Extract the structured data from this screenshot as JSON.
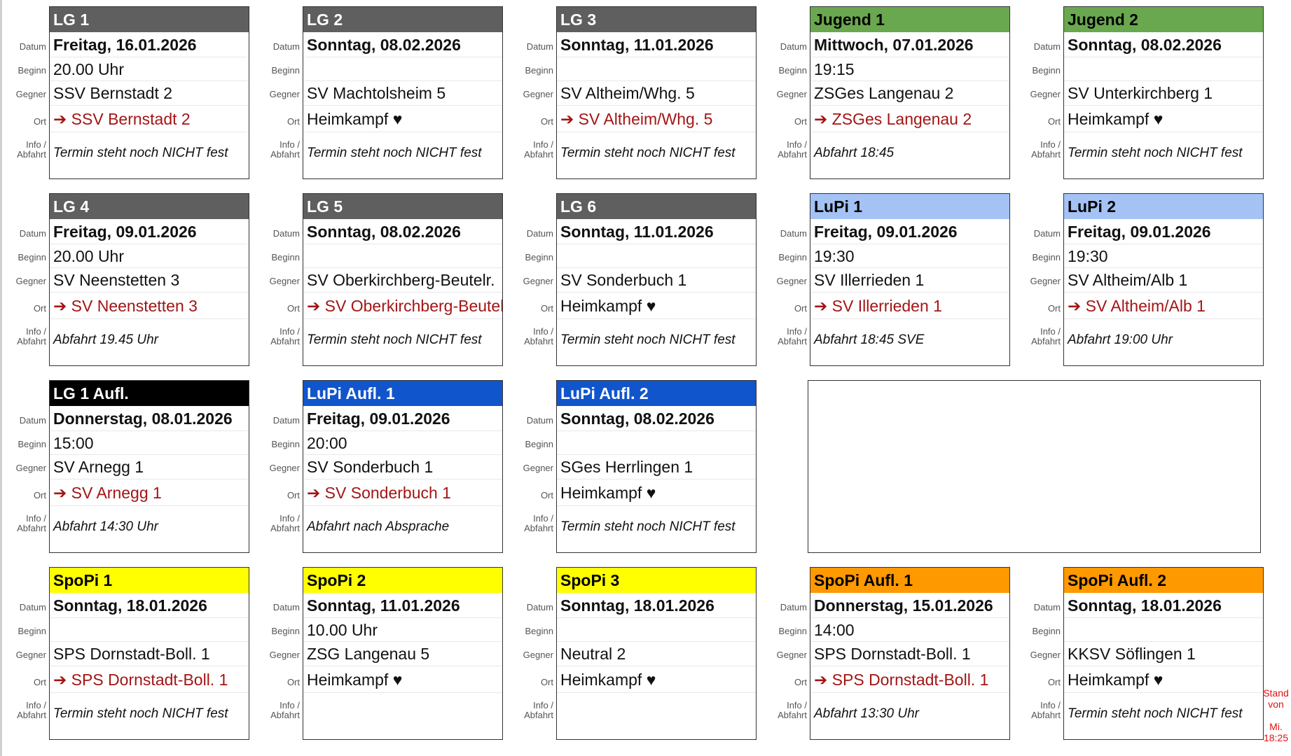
{
  "labels": {
    "datum": "Datum",
    "beginn": "Beginn",
    "gegner": "Gegner",
    "ort": "Ort",
    "info1": "Info /",
    "info2": "Abfahrt"
  },
  "colors": {
    "gray": "#5f5f5f",
    "green": "#6aa84f",
    "lightblue": "#a4c2f4",
    "black": "#000000",
    "blue": "#1155cc",
    "yellow": "#ffff00",
    "orange": "#ff9900",
    "away_text": "#a31515",
    "stand_text": "#e01010"
  },
  "teams": [
    {
      "name": "LG 1",
      "color": "gray",
      "datum": "Freitag, 16.01.2026",
      "beginn": "20.00 Uhr",
      "gegner": "SSV Bernstadt 2",
      "ort": "➔ SSV Bernstadt 2",
      "away": true,
      "info": "Termin steht noch NICHT fest",
      "col": 0,
      "row": 0
    },
    {
      "name": "LG 2",
      "color": "gray",
      "datum": "Sonntag, 08.02.2026",
      "beginn": "",
      "gegner": "SV Machtolsheim 5",
      "ort": "Heimkampf ♥",
      "away": false,
      "info": "Termin steht noch NICHT fest",
      "col": 1,
      "row": 0
    },
    {
      "name": "LG 3",
      "color": "gray",
      "datum": "Sonntag, 11.01.2026",
      "beginn": "",
      "gegner": "SV Altheim/Whg. 5",
      "ort": "➔ SV Altheim/Whg. 5",
      "away": true,
      "info": "Termin steht noch NICHT fest",
      "col": 2,
      "row": 0
    },
    {
      "name": "Jugend 1",
      "color": "green",
      "datum": "Mittwoch, 07.01.2026",
      "beginn": "19:15",
      "gegner": "ZSGes Langenau 2",
      "ort": "➔ ZSGes Langenau 2",
      "away": true,
      "info": "Abfahrt 18:45",
      "col": 3,
      "row": 0
    },
    {
      "name": "Jugend 2",
      "color": "green",
      "datum": "Sonntag, 08.02.2026",
      "beginn": "",
      "gegner": "SV Unterkirchberg 1",
      "ort": "Heimkampf ♥",
      "away": false,
      "info": "Termin steht noch NICHT fest",
      "col": 4,
      "row": 0
    },
    {
      "name": "LG 4",
      "color": "gray",
      "datum": "Freitag, 09.01.2026",
      "beginn": "20.00 Uhr",
      "gegner": "SV Neenstetten 3",
      "ort": "➔ SV Neenstetten 3",
      "away": true,
      "info": "Abfahrt 19.45 Uhr",
      "col": 0,
      "row": 1
    },
    {
      "name": "LG 5",
      "color": "gray",
      "datum": "Sonntag, 08.02.2026",
      "beginn": "",
      "gegner": "SV Oberkirchberg-Beutelr.",
      "ort": "➔ SV Oberkirchberg-Beutelr.",
      "away": true,
      "info": "Termin steht noch NICHT fest",
      "col": 1,
      "row": 1
    },
    {
      "name": "LG 6",
      "color": "gray",
      "datum": "Sonntag, 11.01.2026",
      "beginn": "",
      "gegner": "SV Sonderbuch 1",
      "ort": "Heimkampf ♥",
      "away": false,
      "info": "Termin steht noch NICHT fest",
      "col": 2,
      "row": 1
    },
    {
      "name": "LuPi 1",
      "color": "lightblue",
      "datum": "Freitag, 09.01.2026",
      "beginn": "19:30",
      "gegner": "SV Illerrieden 1",
      "ort": "➔ SV Illerrieden 1",
      "away": true,
      "info": "Abfahrt 18:45 SVE",
      "col": 3,
      "row": 1
    },
    {
      "name": "LuPi 2",
      "color": "lightblue",
      "datum": "Freitag, 09.01.2026",
      "beginn": "19:30",
      "gegner": "SV Altheim/Alb 1",
      "ort": "➔ SV Altheim/Alb 1",
      "away": true,
      "info": "Abfahrt 19:00 Uhr",
      "col": 4,
      "row": 1
    },
    {
      "name": "LG 1 Aufl.",
      "color": "black",
      "datum": "Donnerstag, 08.01.2026",
      "beginn": "15:00",
      "gegner": "SV Arnegg 1",
      "ort": "➔ SV Arnegg 1",
      "away": true,
      "info": "Abfahrt 14:30 Uhr",
      "col": 0,
      "row": 2
    },
    {
      "name": "LuPi Aufl. 1",
      "color": "blue",
      "datum": "Freitag, 09.01.2026",
      "beginn": "20:00",
      "gegner": "SV Sonderbuch 1",
      "ort": "➔ SV Sonderbuch 1",
      "away": true,
      "info": "Abfahrt nach Absprache",
      "col": 1,
      "row": 2
    },
    {
      "name": "LuPi Aufl. 2",
      "color": "blue",
      "datum": "Sonntag, 08.02.2026",
      "beginn": "",
      "gegner": "SGes Herrlingen 1",
      "ort": "Heimkampf ♥",
      "away": false,
      "info": "Termin steht noch NICHT fest",
      "col": 2,
      "row": 2
    },
    {
      "name": "SpoPi 1",
      "color": "yellow",
      "datum": "Sonntag, 18.01.2026",
      "beginn": "",
      "gegner": "SPS Dornstadt-Boll. 1",
      "ort": "➔ SPS Dornstadt-Boll. 1",
      "away": true,
      "info": "Termin steht noch NICHT fest",
      "col": 0,
      "row": 3
    },
    {
      "name": "SpoPi 2",
      "color": "yellow",
      "datum": "Sonntag, 11.01.2026",
      "beginn": "10.00 Uhr",
      "gegner": "ZSG Langenau 5",
      "ort": "Heimkampf ♥",
      "away": false,
      "info": "",
      "col": 1,
      "row": 3
    },
    {
      "name": "SpoPi 3",
      "color": "yellow",
      "datum": "Sonntag, 18.01.2026",
      "beginn": "",
      "gegner": "Neutral 2",
      "ort": "Heimkampf ♥",
      "away": false,
      "info": "",
      "col": 2,
      "row": 3
    },
    {
      "name": "SpoPi Aufl. 1",
      "color": "orange",
      "datum": "Donnerstag, 15.01.2026",
      "beginn": "14:00",
      "gegner": "SPS Dornstadt-Boll. 1",
      "ort": "➔ SPS Dornstadt-Boll. 1",
      "away": true,
      "info": "Abfahrt 13:30 Uhr",
      "col": 3,
      "row": 3
    },
    {
      "name": "SpoPi Aufl. 2",
      "color": "orange",
      "datum": "Sonntag, 18.01.2026",
      "beginn": "",
      "gegner": "KKSV Söflingen 1",
      "ort": "Heimkampf ♥",
      "away": false,
      "info": "Termin steht noch NICHT fest",
      "col": 4,
      "row": 3
    }
  ],
  "stand": {
    "line1": "Stand",
    "line2": "von",
    "line3": "Mi.",
    "line4": "18:25"
  }
}
